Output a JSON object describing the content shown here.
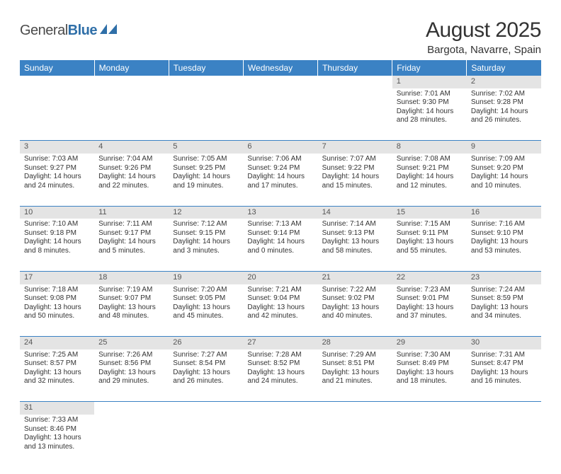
{
  "logo": {
    "general": "General",
    "blue": "Blue"
  },
  "title": "August 2025",
  "location": "Bargota, Navarre, Spain",
  "colors": {
    "header_bg": "#3b82c4",
    "header_text": "#ffffff",
    "daynum_bg": "#e4e4e4",
    "border": "#3b82c4",
    "logo_blue": "#2f6fa8",
    "logo_gray": "#4a4a4a"
  },
  "weekdays": [
    "Sunday",
    "Monday",
    "Tuesday",
    "Wednesday",
    "Thursday",
    "Friday",
    "Saturday"
  ],
  "weeks": [
    [
      null,
      null,
      null,
      null,
      null,
      {
        "n": "1",
        "sr": "Sunrise: 7:01 AM",
        "ss": "Sunset: 9:30 PM",
        "dl": "Daylight: 14 hours and 28 minutes."
      },
      {
        "n": "2",
        "sr": "Sunrise: 7:02 AM",
        "ss": "Sunset: 9:28 PM",
        "dl": "Daylight: 14 hours and 26 minutes."
      }
    ],
    [
      {
        "n": "3",
        "sr": "Sunrise: 7:03 AM",
        "ss": "Sunset: 9:27 PM",
        "dl": "Daylight: 14 hours and 24 minutes."
      },
      {
        "n": "4",
        "sr": "Sunrise: 7:04 AM",
        "ss": "Sunset: 9:26 PM",
        "dl": "Daylight: 14 hours and 22 minutes."
      },
      {
        "n": "5",
        "sr": "Sunrise: 7:05 AM",
        "ss": "Sunset: 9:25 PM",
        "dl": "Daylight: 14 hours and 19 minutes."
      },
      {
        "n": "6",
        "sr": "Sunrise: 7:06 AM",
        "ss": "Sunset: 9:24 PM",
        "dl": "Daylight: 14 hours and 17 minutes."
      },
      {
        "n": "7",
        "sr": "Sunrise: 7:07 AM",
        "ss": "Sunset: 9:22 PM",
        "dl": "Daylight: 14 hours and 15 minutes."
      },
      {
        "n": "8",
        "sr": "Sunrise: 7:08 AM",
        "ss": "Sunset: 9:21 PM",
        "dl": "Daylight: 14 hours and 12 minutes."
      },
      {
        "n": "9",
        "sr": "Sunrise: 7:09 AM",
        "ss": "Sunset: 9:20 PM",
        "dl": "Daylight: 14 hours and 10 minutes."
      }
    ],
    [
      {
        "n": "10",
        "sr": "Sunrise: 7:10 AM",
        "ss": "Sunset: 9:18 PM",
        "dl": "Daylight: 14 hours and 8 minutes."
      },
      {
        "n": "11",
        "sr": "Sunrise: 7:11 AM",
        "ss": "Sunset: 9:17 PM",
        "dl": "Daylight: 14 hours and 5 minutes."
      },
      {
        "n": "12",
        "sr": "Sunrise: 7:12 AM",
        "ss": "Sunset: 9:15 PM",
        "dl": "Daylight: 14 hours and 3 minutes."
      },
      {
        "n": "13",
        "sr": "Sunrise: 7:13 AM",
        "ss": "Sunset: 9:14 PM",
        "dl": "Daylight: 14 hours and 0 minutes."
      },
      {
        "n": "14",
        "sr": "Sunrise: 7:14 AM",
        "ss": "Sunset: 9:13 PM",
        "dl": "Daylight: 13 hours and 58 minutes."
      },
      {
        "n": "15",
        "sr": "Sunrise: 7:15 AM",
        "ss": "Sunset: 9:11 PM",
        "dl": "Daylight: 13 hours and 55 minutes."
      },
      {
        "n": "16",
        "sr": "Sunrise: 7:16 AM",
        "ss": "Sunset: 9:10 PM",
        "dl": "Daylight: 13 hours and 53 minutes."
      }
    ],
    [
      {
        "n": "17",
        "sr": "Sunrise: 7:18 AM",
        "ss": "Sunset: 9:08 PM",
        "dl": "Daylight: 13 hours and 50 minutes."
      },
      {
        "n": "18",
        "sr": "Sunrise: 7:19 AM",
        "ss": "Sunset: 9:07 PM",
        "dl": "Daylight: 13 hours and 48 minutes."
      },
      {
        "n": "19",
        "sr": "Sunrise: 7:20 AM",
        "ss": "Sunset: 9:05 PM",
        "dl": "Daylight: 13 hours and 45 minutes."
      },
      {
        "n": "20",
        "sr": "Sunrise: 7:21 AM",
        "ss": "Sunset: 9:04 PM",
        "dl": "Daylight: 13 hours and 42 minutes."
      },
      {
        "n": "21",
        "sr": "Sunrise: 7:22 AM",
        "ss": "Sunset: 9:02 PM",
        "dl": "Daylight: 13 hours and 40 minutes."
      },
      {
        "n": "22",
        "sr": "Sunrise: 7:23 AM",
        "ss": "Sunset: 9:01 PM",
        "dl": "Daylight: 13 hours and 37 minutes."
      },
      {
        "n": "23",
        "sr": "Sunrise: 7:24 AM",
        "ss": "Sunset: 8:59 PM",
        "dl": "Daylight: 13 hours and 34 minutes."
      }
    ],
    [
      {
        "n": "24",
        "sr": "Sunrise: 7:25 AM",
        "ss": "Sunset: 8:57 PM",
        "dl": "Daylight: 13 hours and 32 minutes."
      },
      {
        "n": "25",
        "sr": "Sunrise: 7:26 AM",
        "ss": "Sunset: 8:56 PM",
        "dl": "Daylight: 13 hours and 29 minutes."
      },
      {
        "n": "26",
        "sr": "Sunrise: 7:27 AM",
        "ss": "Sunset: 8:54 PM",
        "dl": "Daylight: 13 hours and 26 minutes."
      },
      {
        "n": "27",
        "sr": "Sunrise: 7:28 AM",
        "ss": "Sunset: 8:52 PM",
        "dl": "Daylight: 13 hours and 24 minutes."
      },
      {
        "n": "28",
        "sr": "Sunrise: 7:29 AM",
        "ss": "Sunset: 8:51 PM",
        "dl": "Daylight: 13 hours and 21 minutes."
      },
      {
        "n": "29",
        "sr": "Sunrise: 7:30 AM",
        "ss": "Sunset: 8:49 PM",
        "dl": "Daylight: 13 hours and 18 minutes."
      },
      {
        "n": "30",
        "sr": "Sunrise: 7:31 AM",
        "ss": "Sunset: 8:47 PM",
        "dl": "Daylight: 13 hours and 16 minutes."
      }
    ],
    [
      {
        "n": "31",
        "sr": "Sunrise: 7:33 AM",
        "ss": "Sunset: 8:46 PM",
        "dl": "Daylight: 13 hours and 13 minutes."
      },
      null,
      null,
      null,
      null,
      null,
      null
    ]
  ]
}
